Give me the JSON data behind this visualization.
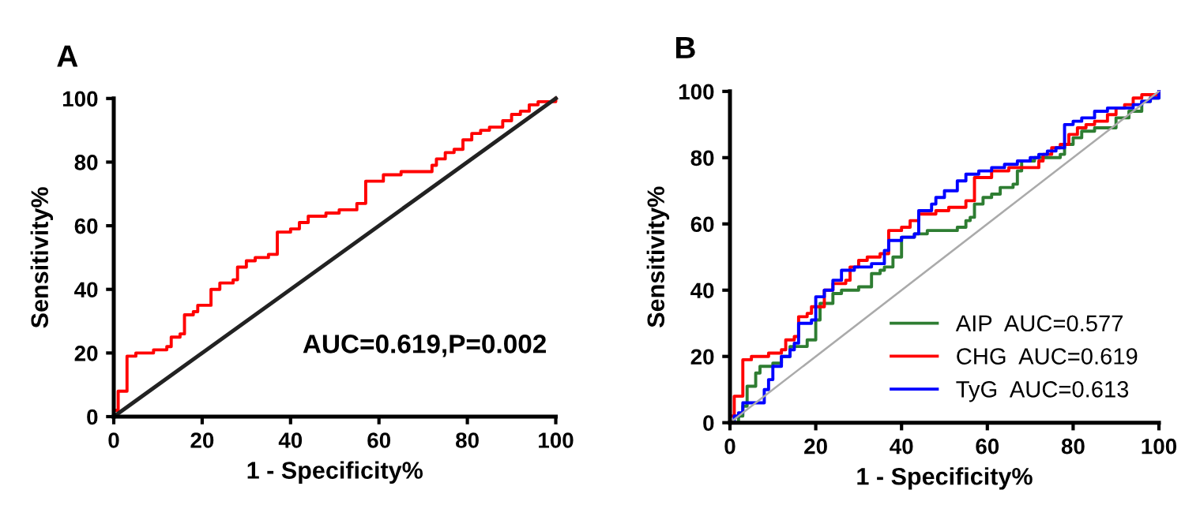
{
  "chart_data": [
    {
      "type": "step",
      "title": "A",
      "xlabel": "1 - Specificity%",
      "ylabel": "Sensitivity%",
      "xlim": [
        0,
        100
      ],
      "ylim": [
        0,
        100
      ],
      "xticks": [
        0,
        20,
        40,
        60,
        80,
        100
      ],
      "yticks": [
        0,
        20,
        40,
        60,
        80,
        100
      ],
      "grid": false,
      "legend": false,
      "annotations": [
        "AUC=0.619,P=0.002"
      ],
      "series": [
        {
          "color": "#ff0000",
          "x": [
            0,
            0,
            1,
            1,
            3,
            3,
            5,
            8,
            9,
            12,
            13,
            15,
            16,
            18,
            19,
            22,
            22,
            24,
            27,
            28,
            30,
            32,
            35,
            37,
            37,
            40,
            42,
            44,
            48,
            51,
            55,
            57,
            57,
            60,
            61,
            64,
            65,
            69,
            72,
            73,
            75,
            77,
            79,
            81,
            83,
            85,
            87,
            88,
            90,
            92,
            94,
            96,
            100
          ],
          "values": [
            0,
            2,
            2,
            8,
            8,
            19,
            20,
            20,
            21,
            22,
            25,
            26,
            32,
            33,
            35,
            35,
            40,
            42,
            43,
            47,
            49,
            50,
            51,
            51,
            58,
            59,
            61,
            63,
            64,
            65,
            67,
            68,
            74,
            74,
            76,
            76,
            77,
            77,
            79,
            81,
            83,
            84,
            87,
            89,
            90,
            91,
            91,
            93,
            95,
            96,
            98,
            99,
            100
          ]
        },
        {
          "type": "line",
          "color": "#222222",
          "x": [
            0,
            100
          ],
          "values": [
            0,
            100
          ]
        }
      ]
    },
    {
      "type": "step",
      "title": "B",
      "xlabel": "1 - Specificity%",
      "ylabel": "Sensitivity%",
      "xlim": [
        0,
        100
      ],
      "ylim": [
        0,
        100
      ],
      "xticks": [
        0,
        20,
        40,
        60,
        80,
        100
      ],
      "yticks": [
        0,
        20,
        40,
        60,
        80,
        100
      ],
      "grid": false,
      "legend": "bottom right",
      "series": [
        {
          "name": "AIP  AUC=0.577",
          "color": "#2e7d32",
          "x": [
            0,
            2,
            3,
            4,
            6,
            7,
            10,
            12,
            14,
            16,
            18,
            20,
            20,
            21,
            24,
            24,
            26,
            30,
            32,
            33,
            35,
            36,
            38,
            40,
            40,
            43,
            46,
            48,
            51,
            53,
            55,
            56,
            57,
            59,
            61,
            63,
            66,
            67,
            68,
            71,
            73,
            75,
            77,
            78,
            80,
            82,
            85,
            88,
            90,
            93,
            96,
            98,
            100
          ],
          "values": [
            0,
            2,
            5,
            11,
            15,
            17,
            18,
            20,
            23,
            23,
            25,
            27,
            31,
            36,
            36,
            39,
            40,
            41,
            41,
            45,
            46,
            47,
            50,
            51,
            56,
            57,
            58,
            58,
            58,
            59,
            61,
            62,
            66,
            68,
            69,
            71,
            72,
            76,
            79,
            80,
            80,
            80,
            81,
            84,
            86,
            88,
            89,
            89,
            92,
            94,
            97,
            98,
            100
          ]
        },
        {
          "name": "CHG  AUC=0.619",
          "color": "#ff0000",
          "x": [
            0,
            0,
            1,
            1,
            3,
            3,
            5,
            8,
            9,
            12,
            13,
            15,
            16,
            18,
            19,
            22,
            22,
            24,
            27,
            28,
            30,
            32,
            35,
            37,
            37,
            40,
            42,
            44,
            48,
            51,
            55,
            57,
            57,
            60,
            61,
            64,
            65,
            69,
            72,
            73,
            75,
            77,
            79,
            81,
            83,
            85,
            87,
            88,
            90,
            92,
            94,
            96,
            100
          ],
          "values": [
            0,
            2,
            2,
            8,
            8,
            19,
            20,
            20,
            21,
            22,
            25,
            26,
            32,
            33,
            35,
            35,
            40,
            42,
            43,
            47,
            49,
            50,
            51,
            51,
            58,
            59,
            61,
            63,
            64,
            65,
            67,
            68,
            74,
            74,
            76,
            76,
            77,
            77,
            79,
            81,
            83,
            84,
            87,
            89,
            90,
            91,
            91,
            93,
            95,
            96,
            98,
            99,
            100
          ]
        },
        {
          "name": "TyG  AUC=0.613",
          "color": "#0000ff",
          "x": [
            0,
            1,
            2,
            3,
            7,
            8,
            9,
            10,
            12,
            14,
            15,
            16,
            19,
            20,
            22,
            24,
            26,
            29,
            33,
            36,
            37,
            40,
            43,
            44,
            47,
            48,
            50,
            53,
            55,
            58,
            61,
            64,
            67,
            70,
            72,
            74,
            76,
            78,
            78,
            80,
            82,
            85,
            88,
            91,
            94,
            96,
            98,
            100
          ],
          "values": [
            0,
            2,
            3,
            6,
            6,
            10,
            13,
            17,
            20,
            22,
            24,
            30,
            31,
            38,
            40,
            43,
            46,
            47,
            48,
            52,
            55,
            56,
            57,
            64,
            66,
            68,
            70,
            73,
            75,
            76,
            77,
            78,
            79,
            80,
            81,
            82,
            83,
            86,
            90,
            91,
            92,
            94,
            95,
            95,
            96,
            97,
            98,
            100
          ]
        },
        {
          "type": "line",
          "color": "#aaaaaa",
          "x": [
            0,
            100
          ],
          "values": [
            0,
            100
          ]
        }
      ]
    }
  ]
}
